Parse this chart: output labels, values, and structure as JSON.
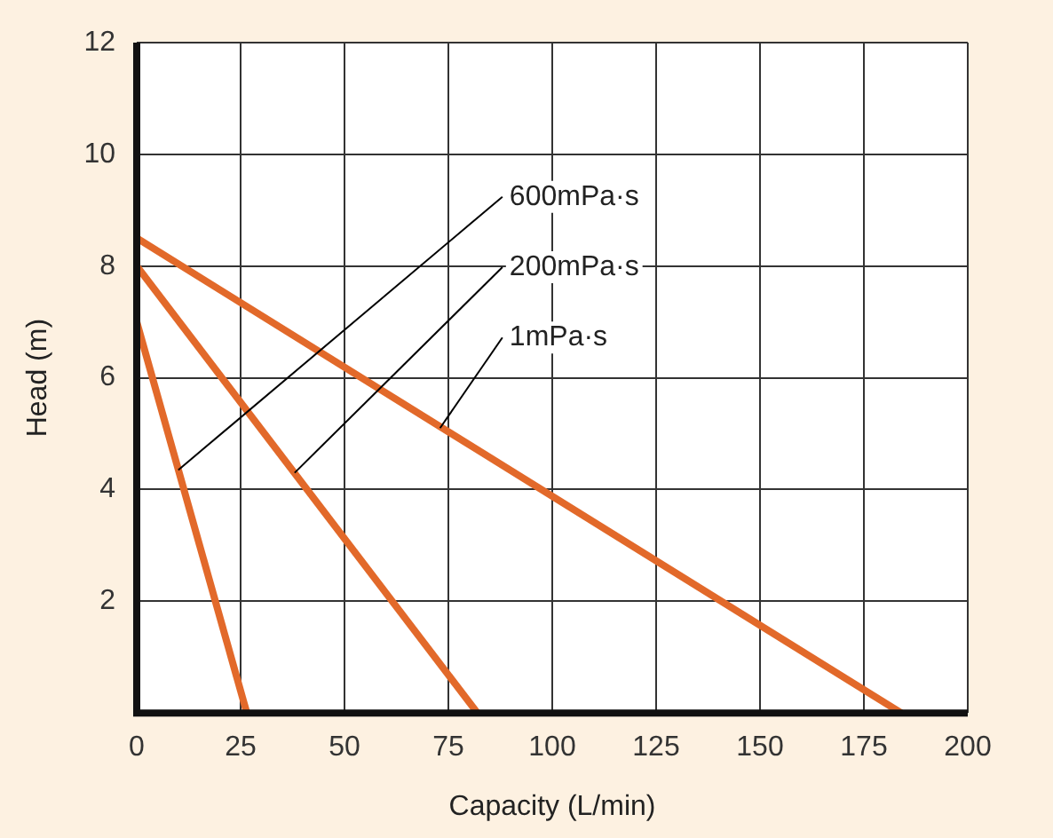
{
  "chart_data": {
    "type": "line",
    "xlabel": "Capacity (L/min)",
    "ylabel": "Head (m)",
    "series": [
      {
        "color": "#e2692a",
        "x": [
          0,
          26.5
        ],
        "values": [
          7,
          0
        ]
      },
      {
        "color": "#e2692a",
        "x": [
          0,
          82
        ],
        "values": [
          8,
          0
        ]
      },
      {
        "color": "#e2692a",
        "x": [
          0,
          184
        ],
        "values": [
          8.5,
          0
        ]
      }
    ],
    "xlim": [
      0,
      200
    ],
    "xticks": [
      0,
      25,
      50,
      75,
      100,
      125,
      150,
      175,
      200
    ],
    "ylim": [
      0,
      12
    ],
    "yticks": [
      {
        "value": 0,
        "label": null
      },
      2,
      4,
      6,
      8,
      10,
      12
    ],
    "grid": true,
    "legend": false,
    "marker": "none",
    "line_style": "solid",
    "annotations": [
      {
        "text": "600mPa·s",
        "x": 10,
        "y": 4.35
      },
      {
        "text": "200mPa·s",
        "x": 38,
        "y": 4.3
      },
      {
        "text": "1mPa·s",
        "x": 73,
        "y": 5.1
      }
    ]
  }
}
